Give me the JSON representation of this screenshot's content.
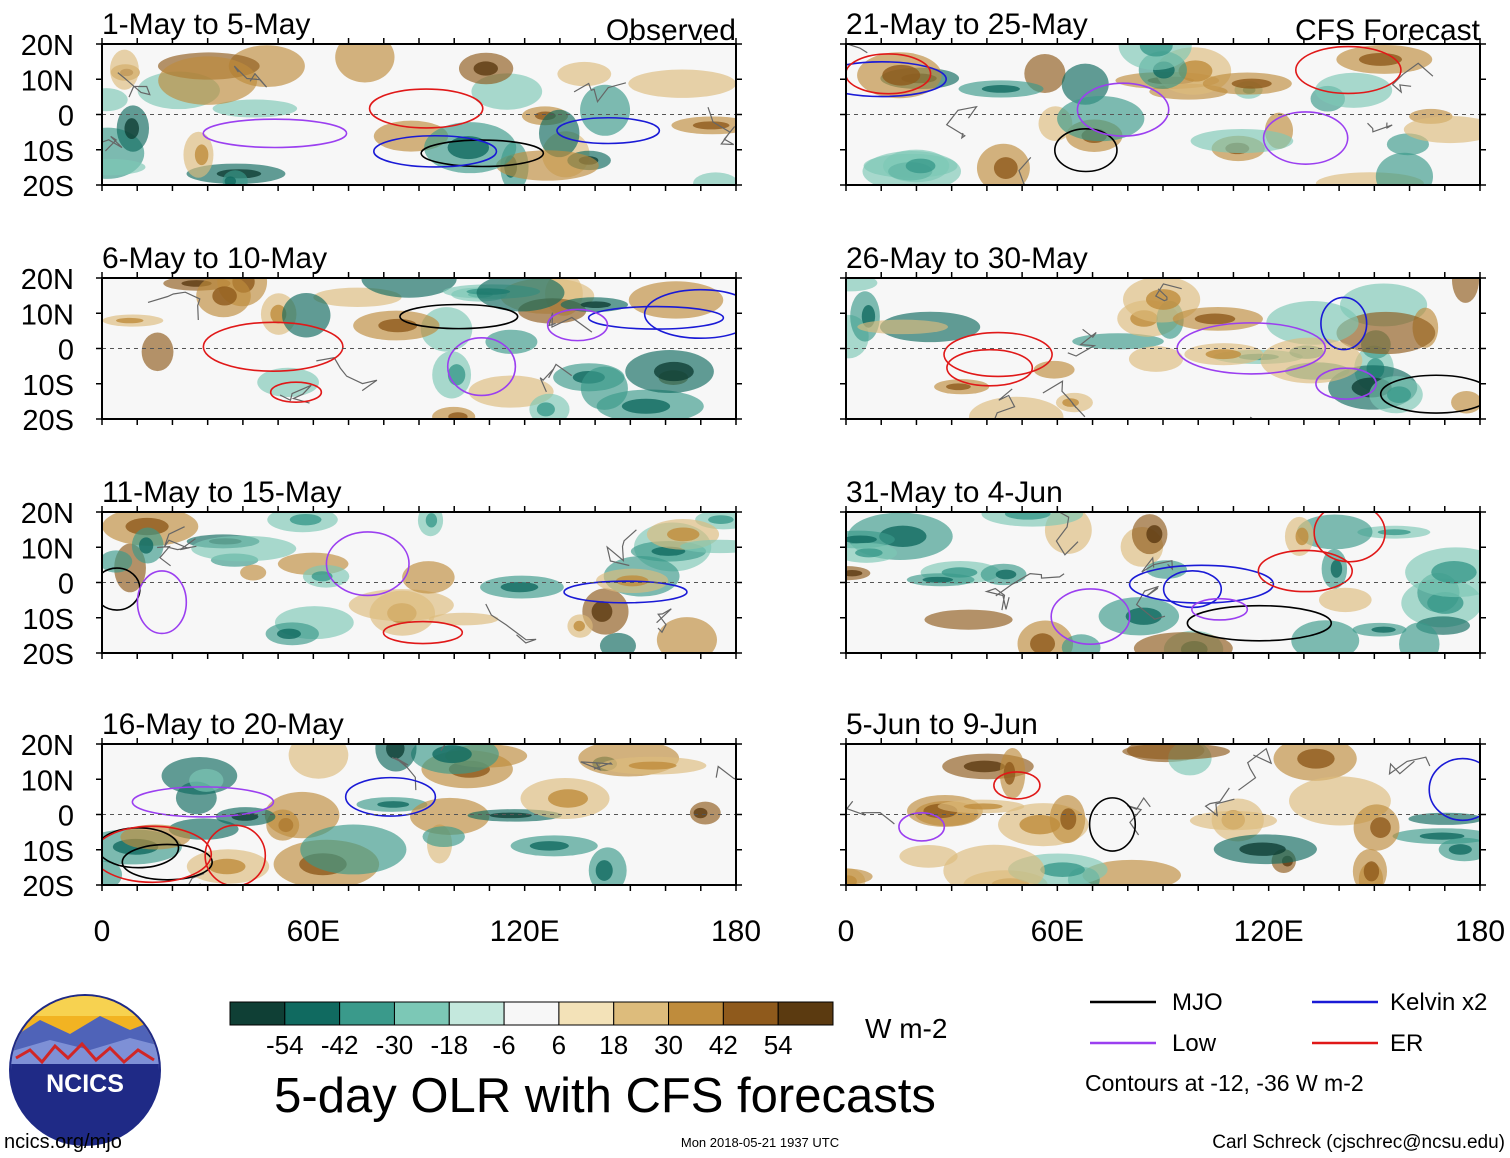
{
  "chart_data": {
    "type": "heatmap",
    "title": "5-day OLR with CFS forecasts",
    "columns": [
      {
        "header": "Observed",
        "panels": [
          {
            "title": "1-May to 5-May"
          },
          {
            "title": "6-May to 10-May"
          },
          {
            "title": "11-May to 15-May"
          },
          {
            "title": "16-May to 20-May"
          }
        ]
      },
      {
        "header": "CFS Forecast",
        "panels": [
          {
            "title": "21-May to 25-May"
          },
          {
            "title": "26-May to 30-May"
          },
          {
            "title": "31-May to 4-Jun"
          },
          {
            "title": "5-Jun to 9-Jun"
          }
        ]
      }
    ],
    "y_tick_labels": [
      "20N",
      "10N",
      "0",
      "10S",
      "20S"
    ],
    "y_tick_values": [
      20,
      10,
      0,
      -10,
      -20
    ],
    "x_tick_labels": [
      "0",
      "60E",
      "120E",
      "180"
    ],
    "x_tick_values": [
      0,
      60,
      120,
      180
    ],
    "xlim": [
      0,
      180
    ],
    "ylim": [
      -20,
      20
    ],
    "colorbar": {
      "colors": [
        "#0f3f35",
        "#106a60",
        "#3a9a8b",
        "#7cc8b6",
        "#c4e8dd",
        "#f7f7f7",
        "#f3e2b8",
        "#ddbc7c",
        "#bf8c3c",
        "#8f5a1c",
        "#5b3a10"
      ],
      "tick_labels": [
        "-54",
        "-42",
        "-30",
        "-18",
        "-6",
        "6",
        "18",
        "30",
        "42",
        "54"
      ],
      "units": "W m-2"
    },
    "legend": [
      {
        "label": "MJO",
        "color": "#000000"
      },
      {
        "label": "Kelvin x2",
        "color": "#1a1ad6"
      },
      {
        "label": "Low",
        "color": "#9b3ff0"
      },
      {
        "label": "ER",
        "color": "#e01818"
      }
    ],
    "contour_note": "Contours at -12, -36 W m-2"
  },
  "logo": {
    "text": "NCICS"
  },
  "footer": {
    "url": "ncics.org/mjo",
    "timestamp": "Mon 2018-05-21 1937 UTC",
    "author": "Carl Schreck (cjschrec@ncsu.edu)"
  }
}
